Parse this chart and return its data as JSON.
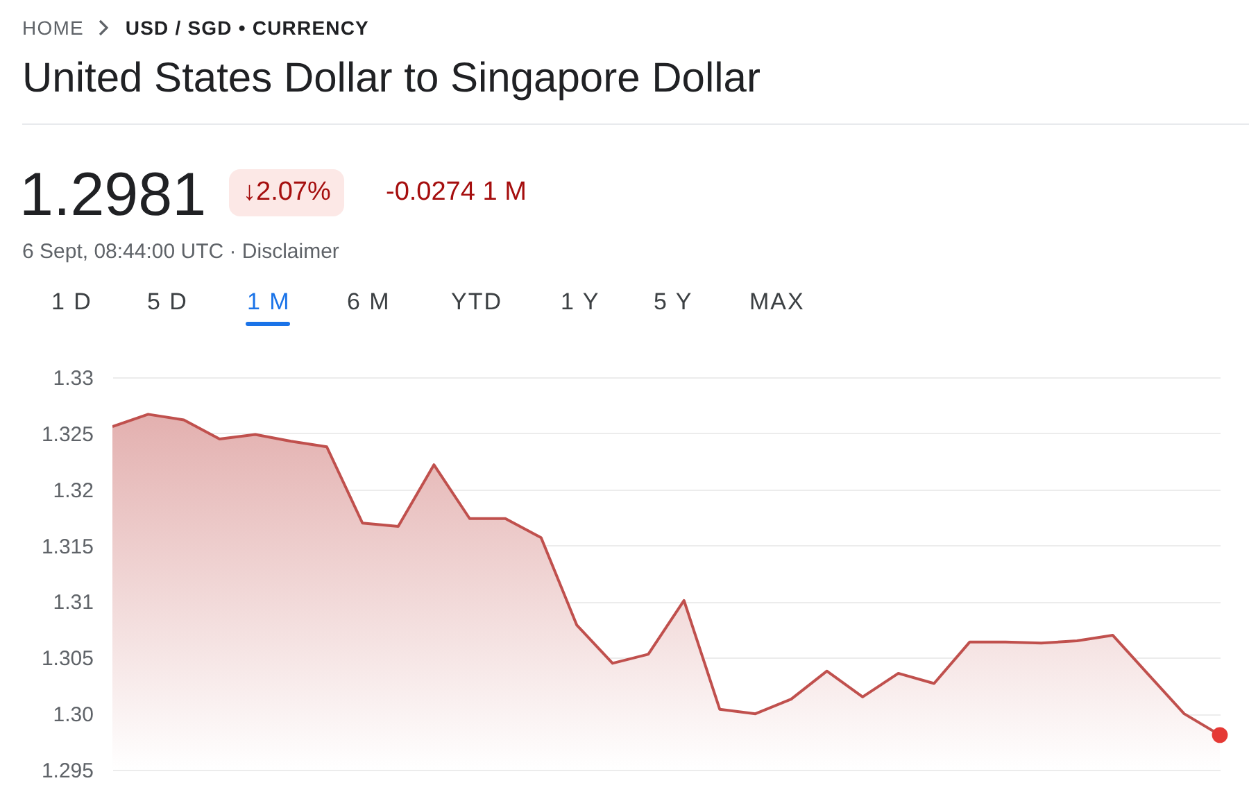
{
  "chart_data": {
    "type": "area",
    "title": "United States Dollar to Singapore Dollar",
    "annotations": [
      "HOME",
      "USD / SGD • CURRENCY",
      "1.2981",
      "↓2.07%",
      "-0.0274 1 M",
      "6 Sept, 08:44:00 UTC · Disclaimer",
      "1 D",
      "5 D",
      "1 M",
      "6 M",
      "YTD",
      "1 Y",
      "5 Y",
      "MAX"
    ],
    "categories": [
      null,
      null,
      null,
      null,
      null,
      null,
      null,
      null,
      null,
      null,
      null,
      null,
      null,
      null,
      null,
      null,
      null,
      null,
      null,
      null,
      null,
      null,
      null,
      null,
      null,
      null,
      null,
      null,
      null,
      null,
      null,
      null
    ],
    "series": [
      {
        "type": "area",
        "color": "#c0504d",
        "values": [
          1.3256,
          1.3267,
          1.3262,
          1.3245,
          1.3249,
          1.3243,
          1.3238,
          1.317,
          1.3167,
          1.3222,
          1.3174,
          1.3174,
          1.3157,
          1.3079,
          1.3045,
          1.3053,
          1.3101,
          1.3004,
          1.3,
          1.3013,
          1.3038,
          1.3015,
          1.3036,
          1.3027,
          1.3064,
          1.3064,
          1.3063,
          1.3065,
          1.307,
          1.3035,
          1.3,
          1.2981
        ]
      },
      {
        "type": "scatter",
        "color": "#e53935",
        "values": [
          null,
          null,
          null,
          null,
          null,
          null,
          null,
          null,
          null,
          null,
          null,
          null,
          null,
          null,
          null,
          null,
          null,
          null,
          null,
          null,
          null,
          null,
          null,
          null,
          null,
          null,
          null,
          null,
          null,
          null,
          null,
          1.2981
        ]
      }
    ],
    "ylim": [
      1.295,
      1.33
    ],
    "yticks": [
      1.295,
      {
        "value": 1.3,
        "label": "1.30"
      },
      1.305,
      1.31,
      1.315,
      1.32,
      1.325,
      1.33
    ],
    "grid": "y"
  }
}
